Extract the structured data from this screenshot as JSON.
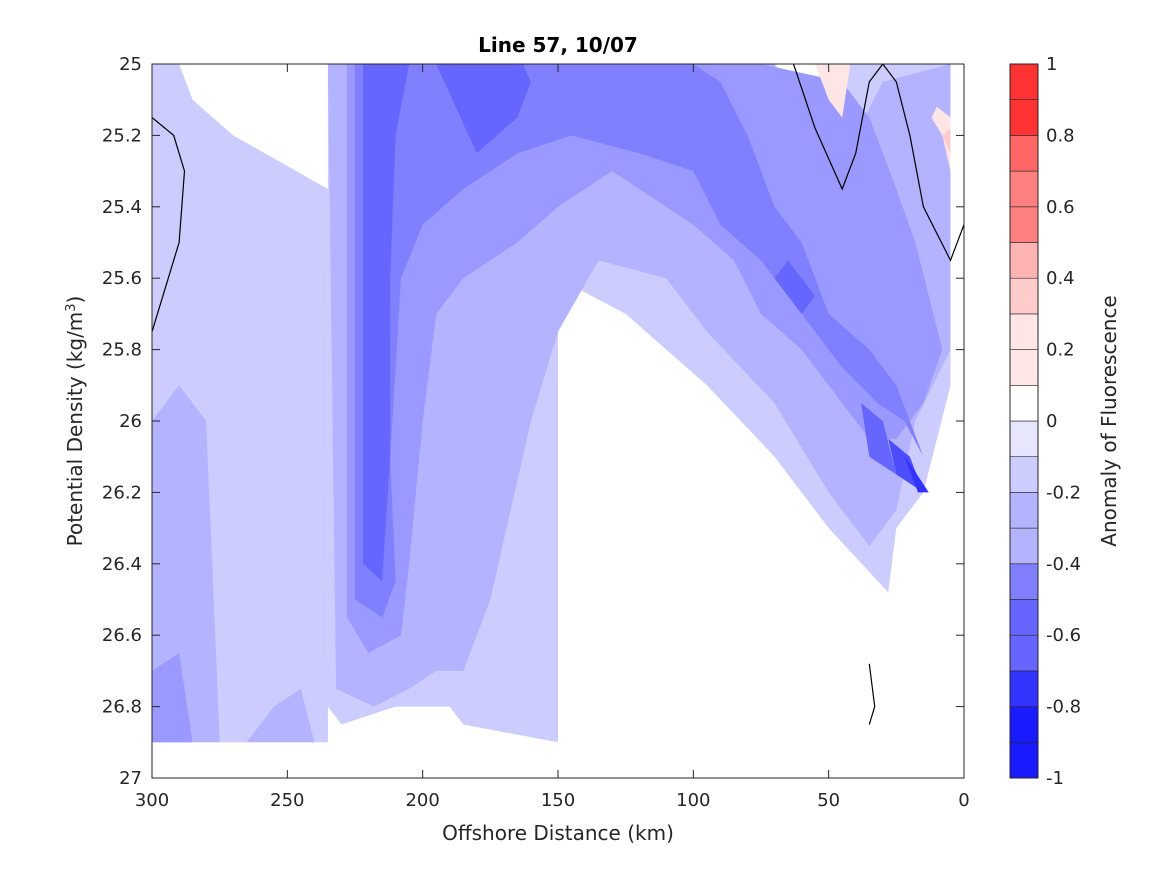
{
  "chart_data": {
    "type": "filled-contour",
    "title": "Line 57, 10/07",
    "xlabel": "Offshore Distance (km)",
    "ylabel": "Potential Density (kg/m",
    "ylabel_sup": "3",
    "ylabel_suffix": ")",
    "xlim": [
      300,
      0
    ],
    "ylim": [
      25,
      27
    ],
    "y_reversed": true,
    "x_reversed": true,
    "xticks": [
      300,
      250,
      200,
      150,
      100,
      50,
      0
    ],
    "yticks": [
      25,
      25.2,
      25.4,
      25.6,
      25.8,
      26,
      26.2,
      26.4,
      26.6,
      26.8,
      27
    ],
    "xtick_labels": [
      "300",
      "250",
      "200",
      "150",
      "100",
      "50",
      "0"
    ],
    "ytick_labels": [
      "25",
      "25.2",
      "25.4",
      "25.6",
      "25.8",
      "26",
      "26.2",
      "26.4",
      "26.6",
      "26.8",
      "27"
    ],
    "colorbar": {
      "label": "Anomaly of Fluorescence",
      "range": [
        -1,
        1
      ],
      "levels": [
        -1,
        -0.9,
        -0.8,
        -0.7,
        -0.6,
        -0.5,
        -0.4,
        -0.3,
        -0.2,
        -0.1,
        0,
        0.1,
        0.2,
        0.3,
        0.4,
        0.5,
        0.6,
        0.7,
        0.8,
        0.9,
        1
      ],
      "colors": [
        "#0000ff",
        "#1a1aff",
        "#3333ff",
        "#4d4dff",
        "#6666ff",
        "#8080ff",
        "#9999ff",
        "#b3b3ff",
        "#ccccff",
        "#e6e6ff",
        "#ffffff",
        "#ffffff",
        "#ffe6e6",
        "#ffcccc",
        "#ffb3b3",
        "#ff9999",
        "#ff8080",
        "#ff6666",
        "#ff4d4d",
        "#ff3333",
        "#ff0000"
      ],
      "tick_values": [
        1,
        0.8,
        0.6,
        0.4,
        0.2,
        0,
        -0.2,
        -0.4,
        -0.6,
        -0.8,
        -1
      ],
      "tick_labels": [
        "1",
        "0.8",
        "0.6",
        "0.4",
        "0.2",
        "0",
        "-0.2",
        "-0.4",
        "-0.6",
        "-0.8",
        "-1"
      ]
    },
    "regions": [
      {
        "level": -0.2,
        "points": [
          [
            300,
            25
          ],
          [
            300,
            26.9
          ],
          [
            235,
            26.9
          ],
          [
            235,
            25.35
          ],
          [
            270,
            25.2
          ],
          [
            285,
            25.1
          ],
          [
            290,
            25
          ]
        ]
      },
      {
        "level": -0.3,
        "points": [
          [
            300,
            26.0
          ],
          [
            290,
            25.9
          ],
          [
            280,
            26.0
          ],
          [
            275,
            26.9
          ],
          [
            300,
            26.9
          ]
        ]
      },
      {
        "level": -0.3,
        "points": [
          [
            255,
            26.8
          ],
          [
            245,
            26.75
          ],
          [
            240,
            26.9
          ],
          [
            265,
            26.9
          ]
        ]
      },
      {
        "level": -0.4,
        "points": [
          [
            300,
            26.7
          ],
          [
            290,
            26.65
          ],
          [
            285,
            26.9
          ],
          [
            300,
            26.9
          ]
        ]
      },
      {
        "level": -0.2,
        "points": [
          [
            235,
            25
          ],
          [
            235,
            26.8
          ],
          [
            230,
            26.85
          ],
          [
            210,
            26.8
          ],
          [
            190,
            26.8
          ],
          [
            185,
            26.85
          ],
          [
            150,
            26.9
          ],
          [
            150,
            25.6
          ],
          [
            125,
            25.7
          ],
          [
            110,
            25.8
          ],
          [
            95,
            25.9
          ],
          [
            70,
            26.1
          ],
          [
            50,
            26.3
          ],
          [
            28,
            26.48
          ],
          [
            25,
            26.3
          ],
          [
            15,
            26.2
          ],
          [
            5,
            25.9
          ],
          [
            5,
            25
          ],
          [
            45,
            25
          ],
          [
            50,
            25.35
          ],
          [
            60,
            25.3
          ],
          [
            70,
            25.1
          ],
          [
            80,
            25
          ]
        ]
      },
      {
        "level": -0.3,
        "points": [
          [
            235,
            25
          ],
          [
            232,
            26.75
          ],
          [
            218,
            26.8
          ],
          [
            205,
            26.75
          ],
          [
            195,
            26.7
          ],
          [
            185,
            26.7
          ],
          [
            175,
            26.5
          ],
          [
            160,
            26.0
          ],
          [
            150,
            25.75
          ],
          [
            135,
            25.55
          ],
          [
            110,
            25.6
          ],
          [
            95,
            25.75
          ],
          [
            70,
            25.95
          ],
          [
            50,
            26.2
          ],
          [
            35,
            26.35
          ],
          [
            25,
            26.25
          ],
          [
            18,
            26.0
          ],
          [
            5,
            25.8
          ],
          [
            5,
            25.0
          ],
          [
            30,
            25.05
          ],
          [
            40,
            25.2
          ],
          [
            45,
            25.35
          ],
          [
            55,
            25.2
          ],
          [
            65,
            25.05
          ],
          [
            70,
            25
          ]
        ]
      },
      {
        "level": -0.4,
        "points": [
          [
            228,
            25
          ],
          [
            228,
            26.55
          ],
          [
            220,
            26.65
          ],
          [
            208,
            26.6
          ],
          [
            205,
            26.4
          ],
          [
            200,
            26.0
          ],
          [
            195,
            25.7
          ],
          [
            185,
            25.6
          ],
          [
            165,
            25.5
          ],
          [
            150,
            25.4
          ],
          [
            130,
            25.3
          ],
          [
            100,
            25.45
          ],
          [
            85,
            25.55
          ],
          [
            75,
            25.7
          ],
          [
            60,
            25.8
          ],
          [
            45,
            25.95
          ],
          [
            35,
            26.05
          ],
          [
            25,
            26.05
          ],
          [
            15,
            25.95
          ],
          [
            8,
            25.8
          ],
          [
            18,
            25.5
          ],
          [
            25,
            25.35
          ],
          [
            35,
            25.15
          ],
          [
            45,
            25.05
          ],
          [
            75,
            25.0
          ]
        ]
      },
      {
        "level": -0.5,
        "points": [
          [
            225,
            25
          ],
          [
            225,
            26.5
          ],
          [
            215,
            26.55
          ],
          [
            210,
            26.45
          ],
          [
            212,
            26.1
          ],
          [
            208,
            25.6
          ],
          [
            200,
            25.45
          ],
          [
            185,
            25.35
          ],
          [
            165,
            25.25
          ],
          [
            145,
            25.2
          ],
          [
            120,
            25.25
          ],
          [
            100,
            25.3
          ],
          [
            90,
            25.45
          ],
          [
            75,
            25.55
          ],
          [
            60,
            25.7
          ],
          [
            45,
            25.85
          ],
          [
            32,
            25.95
          ],
          [
            22,
            26.0
          ],
          [
            15,
            26.1
          ],
          [
            25,
            25.9
          ],
          [
            35,
            25.8
          ],
          [
            50,
            25.7
          ],
          [
            60,
            25.5
          ],
          [
            70,
            25.4
          ],
          [
            80,
            25.2
          ],
          [
            90,
            25.05
          ],
          [
            100,
            25
          ]
        ]
      },
      {
        "level": -0.6,
        "points": [
          [
            222,
            25
          ],
          [
            222,
            26.4
          ],
          [
            215,
            26.45
          ],
          [
            212,
            26.1
          ],
          [
            212,
            25.6
          ],
          [
            210,
            25.2
          ],
          [
            205,
            25.0
          ]
        ]
      },
      {
        "level": -0.6,
        "points": [
          [
            195,
            25
          ],
          [
            180,
            25.25
          ],
          [
            165,
            25.15
          ],
          [
            160,
            25.05
          ],
          [
            163,
            25
          ]
        ]
      },
      {
        "level": -0.6,
        "points": [
          [
            70,
            25.6
          ],
          [
            65,
            25.55
          ],
          [
            55,
            25.65
          ],
          [
            60,
            25.7
          ]
        ]
      },
      {
        "level": -0.6,
        "points": [
          [
            38,
            25.95
          ],
          [
            30,
            26.0
          ],
          [
            25,
            26.15
          ],
          [
            35,
            26.1
          ]
        ]
      },
      {
        "level": -0.7,
        "points": [
          [
            28,
            26.05
          ],
          [
            20,
            26.1
          ],
          [
            15,
            26.2
          ],
          [
            25,
            26.15
          ]
        ]
      },
      {
        "level": -0.8,
        "points": [
          [
            22,
            26.1
          ],
          [
            17,
            26.2
          ],
          [
            13,
            26.2
          ],
          [
            20,
            26.12
          ]
        ]
      },
      {
        "level": 0.2,
        "points": [
          [
            55,
            25
          ],
          [
            50,
            25.1
          ],
          [
            45,
            25.15
          ],
          [
            42,
            25
          ]
        ]
      },
      {
        "level": 0.2,
        "points": [
          [
            12,
            25.15
          ],
          [
            8,
            25.2
          ],
          [
            5,
            25.3
          ],
          [
            5,
            25.15
          ],
          [
            10,
            25.12
          ]
        ]
      },
      {
        "level": 0.3,
        "points": [
          [
            8,
            25.2
          ],
          [
            5,
            25.25
          ],
          [
            5,
            25.18
          ]
        ]
      }
    ],
    "zero_contours": [
      [
        [
          300,
          25.15
        ],
        [
          292,
          25.2
        ],
        [
          288,
          25.3
        ],
        [
          290,
          25.5
        ],
        [
          300,
          25.75
        ]
      ],
      [
        [
          63,
          25
        ],
        [
          55,
          25.18
        ],
        [
          45,
          25.35
        ],
        [
          40,
          25.25
        ],
        [
          35,
          25.05
        ],
        [
          30,
          25.0
        ],
        [
          25,
          25.05
        ],
        [
          20,
          25.2
        ],
        [
          15,
          25.4
        ],
        [
          5,
          25.55
        ],
        [
          0,
          25.45
        ]
      ],
      [
        [
          35,
          26.68
        ],
        [
          33,
          26.8
        ],
        [
          35,
          26.85
        ]
      ]
    ]
  }
}
